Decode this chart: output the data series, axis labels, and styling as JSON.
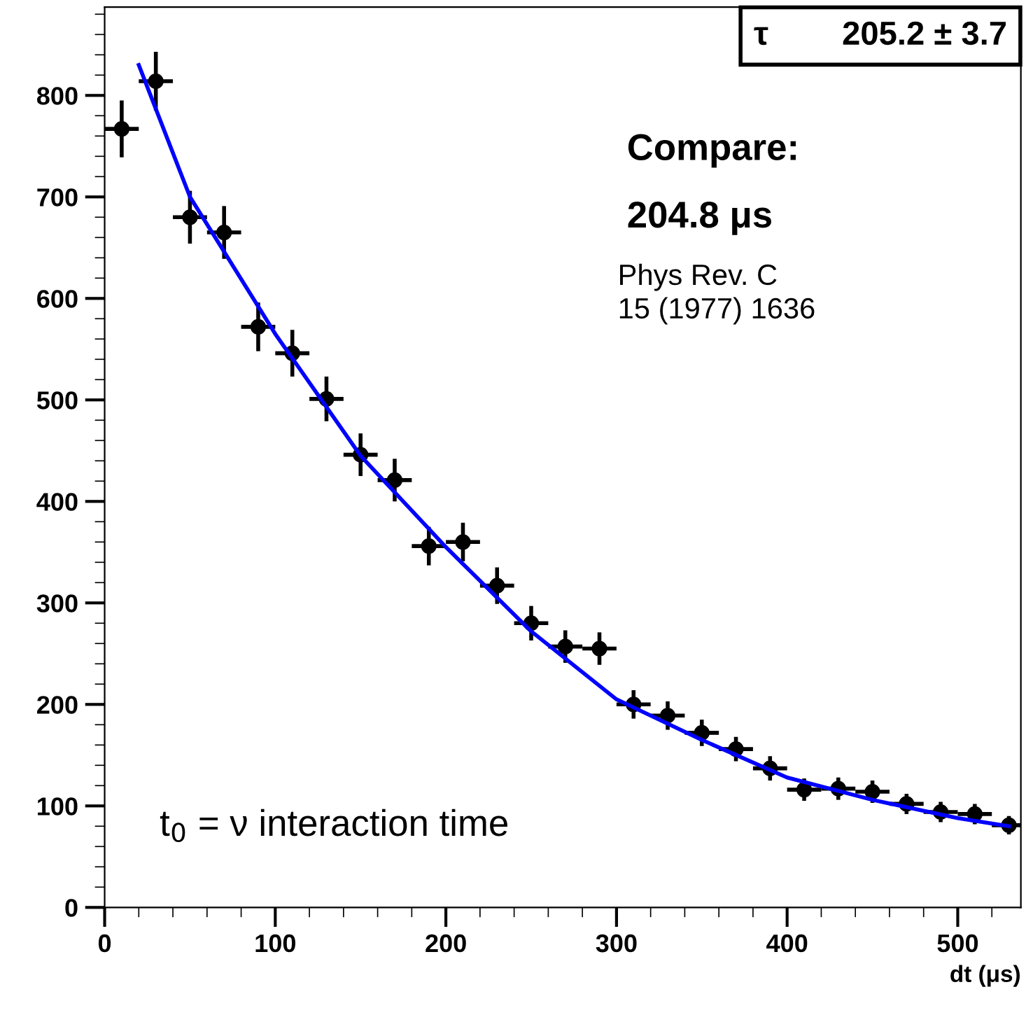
{
  "chart_data": {
    "type": "scatter",
    "xlabel": "dt (μs)",
    "xlim": [
      0,
      537
    ],
    "ylim": [
      0,
      887
    ],
    "xticks": [
      0,
      100,
      200,
      300,
      400,
      500
    ],
    "yticks": [
      0,
      100,
      200,
      300,
      400,
      500,
      600,
      700,
      800
    ],
    "grid": false,
    "legend": false,
    "annotations": [
      "τ        205.2 ± 3.7",
      "Compare:",
      "204.8 μs",
      "Phys Rev. C\n15 (1977) 1636",
      "t$_{0}$ = ν interaction time"
    ],
    "series": [
      {
        "marker": "circle",
        "color": "#000000",
        "x": [
          10,
          30,
          50,
          70,
          90,
          110,
          130,
          150,
          170,
          190,
          210,
          230,
          250,
          270,
          290,
          310,
          330,
          350,
          370,
          390,
          410,
          430,
          450,
          470,
          490,
          510,
          530
        ],
        "values": [
          767,
          814,
          680,
          665,
          572,
          546,
          501,
          446,
          421,
          356,
          360,
          317,
          280,
          257,
          255,
          200,
          189,
          172,
          156,
          137,
          116,
          117,
          114,
          102,
          94,
          92,
          81
        ],
        "errors": [
          28,
          29,
          26,
          26,
          24,
          23,
          22,
          21,
          21,
          19,
          19,
          18,
          17,
          16,
          16,
          14,
          14,
          13,
          12,
          12,
          11,
          11,
          11,
          10,
          10,
          10,
          9
        ],
        "xerrors": [
          10,
          10,
          10,
          10,
          10,
          10,
          10,
          10,
          10,
          10,
          10,
          10,
          10,
          10,
          10,
          10,
          10,
          10,
          10,
          10,
          10,
          10,
          10,
          10,
          10,
          10,
          10
        ]
      },
      {
        "type": "line",
        "marker": "none",
        "color": "#0000ff",
        "line_style": "solid",
        "x": [
          20,
          50,
          100,
          150,
          200,
          250,
          300,
          350,
          400,
          450,
          500,
          530
        ],
        "values": [
          830,
          700,
          565,
          445,
          355,
          272,
          205,
          165,
          128,
          106,
          88,
          80
        ]
      }
    ]
  }
}
